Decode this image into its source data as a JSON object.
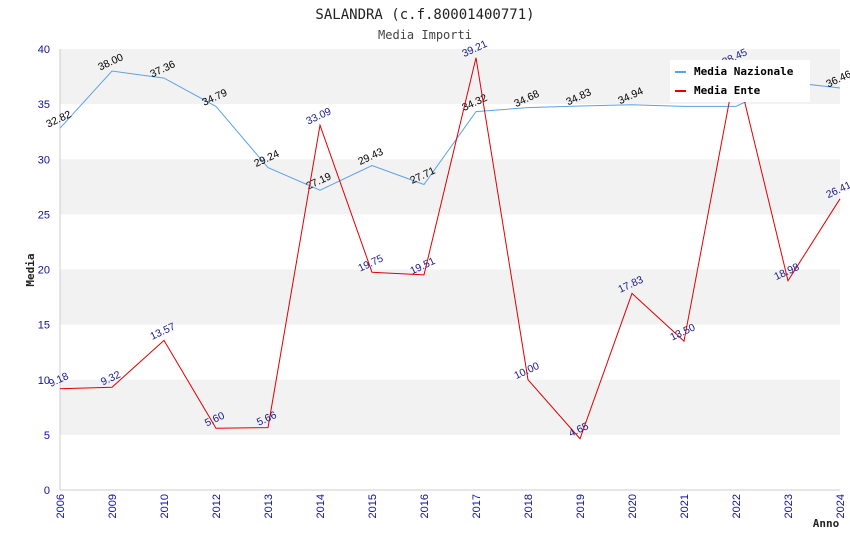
{
  "colors": {
    "nazionale": "#5ba3e6",
    "ente": "#e00000",
    "band": "#f2f2f2",
    "tick": "#1010a0"
  },
  "chart_data": {
    "type": "line",
    "title": "SALANDRA (c.f.80001400771)",
    "subtitle": "Media Importi",
    "xlabel": "Anno",
    "ylabel": "Media",
    "ylim": [
      0,
      40
    ],
    "yticks": [
      "0",
      "5",
      "10",
      "15",
      "20",
      "25",
      "30",
      "35",
      "40"
    ],
    "grid": "alternating horizontal bands",
    "legend_position": "top-right",
    "categories": [
      "2006",
      "2009",
      "2010",
      "2012",
      "2013",
      "2014",
      "2015",
      "2016",
      "2017",
      "2018",
      "2019",
      "2020",
      "2021",
      "2022",
      "2023",
      "2024"
    ],
    "series": [
      {
        "name": "Media Nazionale",
        "values": [
          32.82,
          38.0,
          37.36,
          34.79,
          29.24,
          27.19,
          29.43,
          27.71,
          34.32,
          34.68,
          34.83,
          34.94,
          34.8,
          34.8,
          37.0,
          36.46
        ],
        "labels": [
          "32.82",
          "38.00",
          "37.36",
          "34.79",
          "29.24",
          "27.19",
          "29.43",
          "27.71",
          "34.32",
          "34.68",
          "34.83",
          "34.94",
          "",
          "",
          "",
          "36.46"
        ]
      },
      {
        "name": "Media Ente",
        "values": [
          9.18,
          9.32,
          13.57,
          5.6,
          5.66,
          33.09,
          19.75,
          19.51,
          39.21,
          10.0,
          4.65,
          17.83,
          13.5,
          38.45,
          18.98,
          26.41
        ],
        "labels": [
          "9.18",
          "9.32",
          "13.57",
          "5.60",
          "5.66",
          "33.09",
          "19.75",
          "19.51",
          "39.21",
          "10.00",
          "4.65",
          "17.83",
          "13.50",
          "38.45",
          "18.98",
          "26.41"
        ]
      }
    ]
  }
}
